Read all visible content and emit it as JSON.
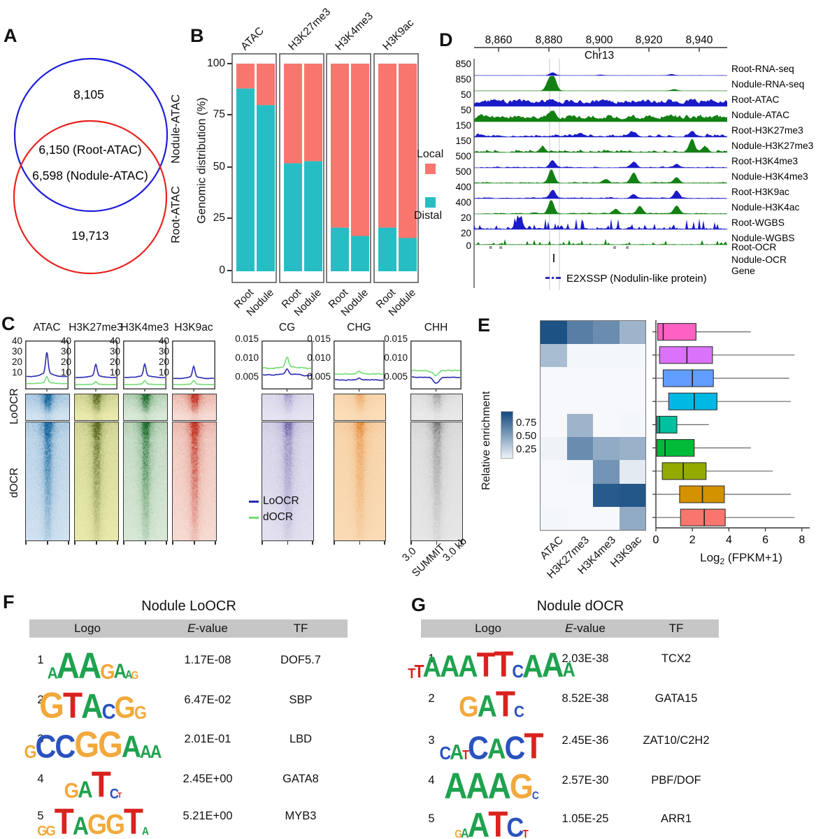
{
  "panel_labels": {
    "a": "A",
    "b": "B",
    "c": "C",
    "d": "D",
    "e": "E",
    "f": "F",
    "g": "G"
  },
  "logo_colors": {
    "A": "#1ea24e",
    "C": "#2a52be",
    "G": "#f2a93b",
    "T": "#d9231f"
  },
  "chart_data": [
    {
      "id": "panel_a",
      "type": "venn",
      "set1": {
        "label": "Nodule-ATAC",
        "color": "#1d1dd8",
        "unique_count": "8,105"
      },
      "set2": {
        "label": "Root-ATAC",
        "color": "#e8231f",
        "unique_count": "19,713"
      },
      "overlap_lines": [
        "6,150 (Root-ATAC)",
        "6,598 (Nodule-ATAC)"
      ]
    },
    {
      "id": "panel_b",
      "type": "bar",
      "stacked": true,
      "ylabel": "Genomic distribution (%)",
      "yticks": [
        "100",
        "75",
        "50",
        "25",
        "0"
      ],
      "facets": [
        "ATAC",
        "H3K27me3",
        "H3K4me3",
        "H3K9ac"
      ],
      "categories": [
        "Root",
        "Nodule"
      ],
      "series": [
        {
          "name": "Distal",
          "color": "#26BEC4",
          "values": [
            [
              88,
              80
            ],
            [
              52,
              53
            ],
            [
              21,
              17
            ],
            [
              21,
              16
            ]
          ]
        },
        {
          "name": "Local",
          "color": "#F8766D",
          "values": [
            [
              12,
              20
            ],
            [
              48,
              47
            ],
            [
              79,
              83
            ],
            [
              79,
              84
            ]
          ]
        }
      ],
      "legend": [
        {
          "label": "Local",
          "color": "#F8766D"
        },
        {
          "label": "Distal",
          "color": "#26BEC4"
        }
      ],
      "ylim": [
        0,
        100
      ]
    },
    {
      "id": "panel_c",
      "type": "profile-heatmap",
      "row_labels": [
        "LoOCR",
        "dOCR"
      ],
      "legend": [
        {
          "label": "LoOCR",
          "color": "#2a2ab0"
        },
        {
          "label": "dOCR",
          "color": "#74dc74"
        }
      ],
      "x_axis_labels": [
        "3.0",
        "SUMMIT",
        "3.0 kb"
      ],
      "columns": [
        {
          "label": "ATAC",
          "yticks": [
            "40",
            "30",
            "20",
            "10"
          ],
          "kind": "chip",
          "loocr": {
            "base": 10,
            "peak": 24
          },
          "docr": {
            "base": 3,
            "peak": 7
          },
          "dark": "#14649c",
          "bg": "#ddeaf6",
          "scale_lo": 1.0,
          "scale_d": 0.95
        },
        {
          "label": "H3K27me3",
          "yticks": [
            "40",
            "30",
            "20",
            "10"
          ],
          "kind": "chip",
          "loocr": {
            "base": 9,
            "peak": 13
          },
          "docr": {
            "base": 2,
            "peak": 3
          },
          "dark": "#55661c",
          "bg": "#f1f1b4",
          "scale_lo": 0.85,
          "scale_d": 0.9
        },
        {
          "label": "H3K4me3",
          "yticks": [
            "40",
            "30",
            "20",
            "10"
          ],
          "kind": "chip",
          "loocr": {
            "base": 9,
            "peak": 13
          },
          "docr": {
            "base": 2,
            "peak": 4
          },
          "dark": "#1d6b2d",
          "bg": "#e3f0e0",
          "scale_lo": 0.9,
          "scale_d": 0.9
        },
        {
          "label": "H3K9ac",
          "yticks": [
            "40",
            "30",
            "20",
            "10"
          ],
          "kind": "chip",
          "loocr": {
            "base": 8,
            "peak": 12
          },
          "docr": {
            "base": 2,
            "peak": 4
          },
          "dark": "#c03020",
          "bg": "#fae6de",
          "scale_lo": 0.95,
          "scale_d": 0.95
        },
        {
          "label": "CG",
          "yticks": [
            "0.015",
            "0.010",
            "0.005"
          ],
          "kind": "meth",
          "loocr": {
            "base": 0.006,
            "peak": 0.0015
          },
          "docr": {
            "base": 0.0078,
            "peak": 0.0032
          },
          "dark": "#4a3f92",
          "bg": "#e8e6f3",
          "scale_lo": 0.3,
          "scale_d": 0.55
        },
        {
          "label": "CHG",
          "yticks": [
            "0.015",
            "0.010",
            "0.005"
          ],
          "kind": "meth",
          "loocr": {
            "base": 0.0048,
            "peak": 0.0004
          },
          "docr": {
            "base": 0.0063,
            "peak": 0.0008
          },
          "dark": "#e0791c",
          "bg": "#fbdfbc",
          "scale_lo": 0.35,
          "scale_d": 0.6
        },
        {
          "label": "CHH",
          "yticks": [
            "0.015",
            "0.010",
            "0.005"
          ],
          "kind": "meth",
          "loocr": {
            "base": 0.0055,
            "peak": -0.0015
          },
          "docr": {
            "base": 0.0072,
            "peak": -0.0012
          },
          "dark": "#4a4a4a",
          "bg": "#ececec",
          "scale_lo": 0.3,
          "scale_d": 0.5
        }
      ]
    },
    {
      "id": "panel_d",
      "type": "genome-tracks",
      "chrom": "Chr13",
      "axis_ticks": [
        "8,860",
        "8,880",
        "8,900",
        "8,920",
        "8,940"
      ],
      "baseline_label": "0",
      "gene_label": "E2XSSP (Nodulin-like protein)",
      "gene_track_label": "Gene",
      "ocr_tracks": [
        {
          "label": "Root-OCR",
          "color": "#9a9a9a"
        },
        {
          "label": "Nodule-OCR",
          "color": "#333333"
        }
      ],
      "tracks": [
        {
          "label": "Root-RNA-seq",
          "scale": "850",
          "color": "#1a1ac8",
          "style": "rna",
          "peaks": [
            [
              0.31,
              0.22
            ],
            [
              0.5,
              0.06
            ],
            [
              0.78,
              0.1
            ]
          ]
        },
        {
          "label": "Nodule-RNA-seq",
          "scale": "850",
          "color": "#128012",
          "style": "rna",
          "peaks": [
            [
              0.295,
              0.75
            ],
            [
              0.315,
              1.0
            ],
            [
              0.79,
              0.12
            ]
          ]
        },
        {
          "label": "Root-ATAC",
          "scale": "50",
          "color": "#1a1ac8",
          "style": "dense",
          "peaks": [
            [
              0.31,
              0.25
            ]
          ]
        },
        {
          "label": "Nodule-ATAC",
          "scale": "50",
          "color": "#128012",
          "style": "dense",
          "peaks": [
            [
              0.31,
              0.55
            ]
          ]
        },
        {
          "label": "Root-H3K27me3",
          "scale": "150",
          "color": "#1a1ac8",
          "style": "sparse",
          "peaks": [
            [
              0.42,
              0.25
            ],
            [
              0.62,
              0.3
            ],
            [
              0.86,
              0.35
            ]
          ]
        },
        {
          "label": "Nodule-H3K27me3",
          "scale": "150",
          "color": "#128012",
          "style": "sparse",
          "peaks": [
            [
              0.27,
              0.35
            ],
            [
              0.86,
              0.95
            ],
            [
              0.91,
              0.4
            ]
          ]
        },
        {
          "label": "Root-H3K4me3",
          "scale": "500",
          "color": "#1a1ac8",
          "style": "peaky",
          "peaks": [
            [
              0.31,
              0.55
            ],
            [
              0.63,
              0.4
            ],
            [
              0.8,
              0.22
            ]
          ]
        },
        {
          "label": "Nodule-H3K4me3",
          "scale": "500",
          "color": "#128012",
          "style": "peaky",
          "peaks": [
            [
              0.305,
              1.0
            ],
            [
              0.52,
              0.28
            ],
            [
              0.63,
              0.75
            ],
            [
              0.8,
              0.42
            ]
          ]
        },
        {
          "label": "Root-H3K9ac",
          "scale": "400",
          "color": "#1a1ac8",
          "style": "peaky",
          "peaks": [
            [
              0.31,
              0.62
            ],
            [
              0.63,
              0.3
            ],
            [
              0.8,
              0.55
            ]
          ]
        },
        {
          "label": "Nodule-H3K4ac",
          "scale": "400",
          "color": "#128012",
          "style": "peaky",
          "peaks": [
            [
              0.305,
              1.0
            ],
            [
              0.56,
              0.35
            ],
            [
              0.655,
              0.55
            ],
            [
              0.8,
              0.6
            ]
          ]
        },
        {
          "label": "Root-WGBS",
          "scale": "20",
          "color": "#1a1ac8",
          "style": "wgbs",
          "peaks": [
            [
              0.18,
              0.85
            ]
          ]
        },
        {
          "label": "Nodule-WGBS",
          "scale": "20",
          "color": "#128012",
          "style": "wgbs2",
          "peaks": []
        }
      ]
    },
    {
      "id": "panel_e_heatmap",
      "type": "heatmap",
      "colorbar_label": "Relative enrichment",
      "colorbar_ticks": [
        "0.75",
        "0.50",
        "0.25"
      ],
      "columns": [
        "ATAC",
        "H3K27me3",
        "H3K4me3",
        "H3K9ac"
      ],
      "max_color": "#11497f",
      "values": [
        [
          0.95,
          0.7,
          0.62,
          0.4
        ],
        [
          0.35,
          0.03,
          0.03,
          0.03
        ],
        [
          0.02,
          0.02,
          0.02,
          0.02
        ],
        [
          0.02,
          0.02,
          0.02,
          0.02
        ],
        [
          0.02,
          0.4,
          0.02,
          0.03
        ],
        [
          0.05,
          0.62,
          0.45,
          0.42
        ],
        [
          0.02,
          0.03,
          0.58,
          0.1
        ],
        [
          0.02,
          0.02,
          0.9,
          0.92
        ],
        [
          0.03,
          0.02,
          0.02,
          0.45
        ]
      ]
    },
    {
      "id": "panel_e_boxplots",
      "type": "boxplot",
      "xlabel_parts": {
        "base": "Log",
        "sub": "2",
        "rest": " (FPKM+1)"
      },
      "xticks": [
        "0",
        "2",
        "4",
        "6",
        "8"
      ],
      "xlim": [
        0,
        8.6
      ],
      "boxes": [
        {
          "color": "#FF61C3",
          "low": 0.05,
          "q1": 0.1,
          "median": 0.4,
          "q3": 2.2,
          "high": 5.2
        },
        {
          "color": "#DB72FB",
          "low": 0.0,
          "q1": 0.2,
          "median": 1.7,
          "q3": 3.1,
          "high": 7.6
        },
        {
          "color": "#619CFF",
          "low": 0.0,
          "q1": 0.4,
          "median": 2.0,
          "q3": 3.15,
          "high": 7.3
        },
        {
          "color": "#00B9E3",
          "low": 0.05,
          "q1": 0.7,
          "median": 2.1,
          "q3": 3.35,
          "high": 7.4
        },
        {
          "color": "#00C19F",
          "low": 0.0,
          "q1": 0.05,
          "median": 0.2,
          "q3": 1.15,
          "high": 2.9
        },
        {
          "color": "#00BA38",
          "low": 0.0,
          "q1": 0.05,
          "median": 0.5,
          "q3": 2.1,
          "high": 5.2
        },
        {
          "color": "#93AA00",
          "low": 0.0,
          "q1": 0.35,
          "median": 1.5,
          "q3": 2.75,
          "high": 6.4
        },
        {
          "color": "#D39200",
          "low": 0.0,
          "q1": 1.3,
          "median": 2.55,
          "q3": 3.75,
          "high": 7.4
        },
        {
          "color": "#F8766D",
          "low": 0.0,
          "q1": 1.35,
          "median": 2.65,
          "q3": 3.8,
          "high": 7.6
        }
      ]
    },
    {
      "id": "panel_f",
      "type": "table",
      "title": "Nodule LoOCR",
      "headers": {
        "logo": "Logo",
        "evalue_e": "E",
        "evalue_suffix": "-value",
        "tf": "TF"
      },
      "rows": [
        {
          "rank": "1",
          "evalue": "1.17E-08",
          "tf": "DOF5.7",
          "logo": [
            [
              "A",
              0.45
            ],
            [
              "A",
              1.0
            ],
            [
              "A",
              1.0
            ],
            [
              "G",
              0.6
            ],
            [
              "A",
              0.55
            ],
            [
              "A",
              0.32
            ],
            [
              "G",
              0.3
            ]
          ]
        },
        {
          "rank": "2",
          "evalue": "6.47E-02",
          "tf": "SBP",
          "logo": [
            [
              "G",
              1.0
            ],
            [
              "T",
              1.0
            ],
            [
              "A",
              0.95
            ],
            [
              "C",
              0.6
            ],
            [
              "G",
              0.85
            ],
            [
              "G",
              0.5
            ]
          ]
        },
        {
          "rank": "3",
          "evalue": "2.01E-01",
          "tf": "LBD",
          "logo": [
            [
              "G",
              0.5
            ],
            [
              "C",
              0.9
            ],
            [
              "C",
              0.9
            ],
            [
              "G",
              1.0
            ],
            [
              "G",
              1.0
            ],
            [
              "A",
              0.85
            ],
            [
              "A",
              0.5
            ],
            [
              "A",
              0.5
            ]
          ]
        },
        {
          "rank": "4",
          "evalue": "2.45E+00",
          "tf": "GATA8",
          "logo": [
            [
              "G",
              0.6
            ],
            [
              "A",
              0.65
            ],
            [
              "T",
              1.0
            ],
            [
              "C",
              0.4
            ],
            [
              "T",
              0.22
            ]
          ]
        },
        {
          "rank": "5",
          "evalue": "5.21E+00",
          "tf": "MYB3",
          "logo": [
            [
              "G",
              0.4
            ],
            [
              "G",
              0.4
            ],
            [
              "T",
              1.0
            ],
            [
              "A",
              0.7
            ],
            [
              "G",
              0.78
            ],
            [
              "G",
              0.78
            ],
            [
              "T",
              1.0
            ],
            [
              "A",
              0.3
            ]
          ]
        }
      ]
    },
    {
      "id": "panel_g",
      "type": "table",
      "title": "Nodule dOCR",
      "headers": {
        "logo": "Logo",
        "evalue_e": "E",
        "evalue_suffix": "-value",
        "tf": "TF"
      },
      "rows": [
        {
          "rank": "1",
          "evalue": "2.03E-38",
          "tf": "TCX2",
          "logo": [
            [
              "T",
              0.4
            ],
            [
              "T",
              0.5
            ],
            [
              "A",
              0.8
            ],
            [
              "A",
              0.85
            ],
            [
              "A",
              0.85
            ],
            [
              "T",
              0.95
            ],
            [
              "T",
              1.0
            ],
            [
              "C",
              0.5
            ],
            [
              "A",
              0.9
            ],
            [
              "A",
              0.95
            ],
            [
              "A",
              0.55
            ]
          ]
        },
        {
          "rank": "2",
          "evalue": "8.52E-38",
          "tf": "GATA15",
          "logo": [
            [
              "G",
              0.8
            ],
            [
              "A",
              0.85
            ],
            [
              "T",
              1.0
            ],
            [
              "C",
              0.45
            ]
          ]
        },
        {
          "rank": "3",
          "evalue": "2.45E-36",
          "tf": "ZAT10/C2H2",
          "logo": [
            [
              "C",
              0.5
            ],
            [
              "A",
              0.6
            ],
            [
              "T",
              0.35
            ],
            [
              "C",
              0.9
            ],
            [
              "A",
              0.8
            ],
            [
              "C",
              0.9
            ],
            [
              "T",
              1.0
            ]
          ]
        },
        {
          "rank": "4",
          "evalue": "2.57E-30",
          "tf": "PBF/DOF",
          "logo": [
            [
              "A",
              1.0
            ],
            [
              "A",
              1.0
            ],
            [
              "A",
              1.0
            ],
            [
              "G",
              0.95
            ],
            [
              "C",
              0.3
            ]
          ]
        },
        {
          "rank": "5",
          "evalue": "1.05E-25",
          "tf": "ARR1",
          "logo": [
            [
              "G",
              0.3
            ],
            [
              "A",
              0.35
            ],
            [
              "A",
              0.95
            ],
            [
              "T",
              1.0
            ],
            [
              "C",
              0.75
            ],
            [
              "T",
              0.3
            ]
          ]
        }
      ]
    }
  ]
}
